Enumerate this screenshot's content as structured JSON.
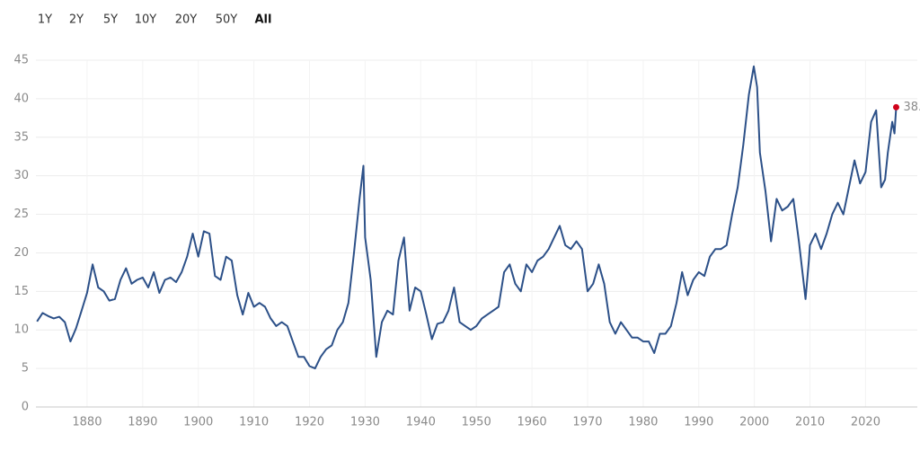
{
  "range_buttons": [
    "1Y",
    "2Y",
    "5Y",
    "10Y",
    "20Y",
    "50Y",
    "All"
  ],
  "active_range": 6,
  "chart_data": {
    "type": "line",
    "color": "#2c5088",
    "last_point_color": "#d0021b",
    "grid": true,
    "xlim": [
      1870.8,
      2029.3
    ],
    "xticks": [
      1880,
      1890,
      1900,
      1910,
      1920,
      1930,
      1940,
      1950,
      1960,
      1970,
      1980,
      1990,
      2000,
      2010,
      2020
    ],
    "ylim": [
      0,
      45
    ],
    "yticks": [
      0,
      5,
      10,
      15,
      20,
      25,
      30,
      35,
      40,
      45
    ],
    "x": [
      1871,
      1872,
      1873,
      1874,
      1875,
      1876,
      1877,
      1878,
      1879,
      1880,
      1881,
      1882,
      1883,
      1884,
      1885,
      1886,
      1887,
      1888,
      1889,
      1890,
      1891,
      1892,
      1893,
      1894,
      1895,
      1896,
      1897,
      1898,
      1899,
      1900,
      1901,
      1902,
      1903,
      1904,
      1905,
      1906,
      1907,
      1908,
      1909,
      1910,
      1911,
      1912,
      1913,
      1914,
      1915,
      1916,
      1917,
      1918,
      1919,
      1920,
      1921,
      1922,
      1923,
      1924,
      1925,
      1926,
      1927,
      1928,
      1929,
      1929.7,
      1930,
      1931,
      1932,
      1933,
      1934,
      1935,
      1936,
      1937,
      1938,
      1939,
      1940,
      1941,
      1942,
      1943,
      1944,
      1945,
      1946,
      1947,
      1948,
      1949,
      1950,
      1951,
      1952,
      1953,
      1954,
      1955,
      1956,
      1957,
      1958,
      1959,
      1960,
      1961,
      1962,
      1963,
      1964,
      1965,
      1966,
      1967,
      1968,
      1969,
      1970,
      1971,
      1972,
      1973,
      1974,
      1975,
      1976,
      1977,
      1978,
      1979,
      1980,
      1981,
      1982,
      1983,
      1984,
      1985,
      1986,
      1987,
      1988,
      1989,
      1990,
      1991,
      1992,
      1993,
      1994,
      1995,
      1996,
      1997,
      1998,
      1999,
      1999.9,
      2000.5,
      2001,
      2002,
      2003,
      2004,
      2005,
      2006,
      2007,
      2008,
      2009.2,
      2009.8,
      2010,
      2011,
      2012,
      2013,
      2014,
      2015,
      2016,
      2017,
      2018,
      2019,
      2020,
      2021,
      2021.9,
      2022.8,
      2023.5,
      2024,
      2024.8,
      2025.2,
      2025.5
    ],
    "values": [
      11.1,
      12.2,
      11.8,
      11.5,
      11.7,
      11.0,
      8.5,
      10.2,
      12.5,
      14.8,
      18.5,
      15.5,
      15.0,
      13.8,
      14.0,
      16.5,
      18.0,
      16.0,
      16.5,
      16.8,
      15.5,
      17.5,
      14.8,
      16.5,
      16.8,
      16.2,
      17.5,
      19.5,
      22.5,
      19.5,
      22.8,
      22.5,
      17.0,
      16.5,
      19.5,
      19.0,
      14.5,
      12.0,
      14.8,
      13.0,
      13.5,
      13.0,
      11.5,
      10.5,
      11.0,
      10.5,
      8.5,
      6.5,
      6.5,
      5.3,
      5.0,
      6.5,
      7.5,
      8.0,
      10.0,
      11.0,
      13.5,
      20.0,
      27.0,
      31.3,
      22.0,
      16.5,
      6.5,
      11.0,
      12.5,
      12.0,
      19.0,
      22.0,
      12.5,
      15.5,
      15.0,
      12.0,
      8.8,
      10.8,
      11.0,
      12.5,
      15.5,
      11.0,
      10.5,
      10.0,
      10.5,
      11.5,
      12.0,
      12.5,
      13.0,
      17.5,
      18.5,
      16.0,
      15.0,
      18.5,
      17.5,
      19.0,
      19.5,
      20.5,
      22.0,
      23.5,
      21.0,
      20.5,
      21.5,
      20.5,
      15.0,
      16.0,
      18.5,
      16.0,
      11.0,
      9.5,
      11.0,
      10.0,
      9.0,
      9.0,
      8.5,
      8.5,
      7.0,
      9.5,
      9.5,
      10.5,
      13.5,
      17.5,
      14.5,
      16.5,
      17.5,
      17.0,
      19.5,
      20.5,
      20.5,
      21.0,
      25.0,
      28.5,
      34.0,
      40.5,
      44.2,
      41.5,
      33.0,
      28.0,
      21.5,
      27.0,
      25.5,
      26.0,
      27.0,
      21.5,
      14.0,
      19.0,
      21.0,
      22.5,
      20.5,
      22.5,
      25.0,
      26.5,
      25.0,
      28.5,
      32.0,
      29.0,
      30.5,
      37.0,
      38.5,
      28.5,
      29.5,
      33.0,
      37.0,
      35.5,
      38.9
    ]
  }
}
